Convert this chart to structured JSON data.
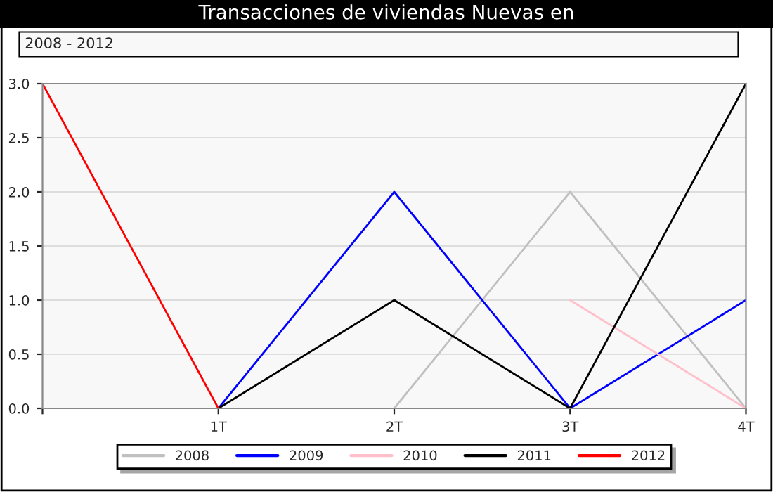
{
  "chart_data": {
    "type": "line",
    "title": "Transacciones de viviendas Nuevas en",
    "subtitle": "2008 - 2012",
    "categories": [
      null,
      "1T",
      "2T",
      "3T",
      "4T"
    ],
    "series": [
      {
        "name": "2008",
        "color": "#c0c0c0",
        "values": [
          null,
          null,
          0,
          2,
          0
        ]
      },
      {
        "name": "2009",
        "color": "#0000ff",
        "values": [
          null,
          0,
          2,
          0,
          1
        ]
      },
      {
        "name": "2010",
        "color": "#ffc0cb",
        "values": [
          null,
          null,
          null,
          1,
          0
        ]
      },
      {
        "name": "2011",
        "color": "#000000",
        "values": [
          null,
          0,
          1,
          0,
          3
        ]
      },
      {
        "name": "2012",
        "color": "#ff0000",
        "values": [
          3,
          0,
          null,
          null,
          null
        ]
      }
    ],
    "ylim": [
      0,
      3
    ],
    "yticks": [
      {
        "value": 0,
        "label": "0.0"
      },
      {
        "value": 0.5,
        "label": "0.5"
      },
      {
        "value": 1,
        "label": "1.0"
      },
      {
        "value": 1.5,
        "label": "1.5"
      },
      {
        "value": 2,
        "label": "2.0"
      },
      {
        "value": 2.5,
        "label": "2.5"
      },
      {
        "value": 3,
        "label": "3.0"
      }
    ],
    "grid": "y",
    "legend": "bottom",
    "marker": "none",
    "line_style": "solid"
  }
}
